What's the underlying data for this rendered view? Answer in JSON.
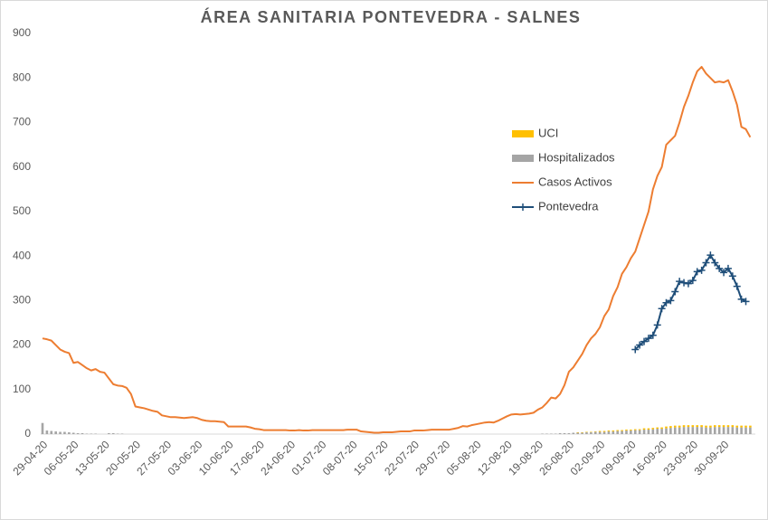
{
  "chart_data": {
    "type": "combo",
    "title": "ÁREA SANITARIA  PONTEVEDRA  - SALNES",
    "categories": [
      "29-04-20",
      null,
      null,
      null,
      null,
      null,
      null,
      "06-05-20",
      null,
      null,
      null,
      null,
      null,
      null,
      "13-05-20",
      null,
      null,
      null,
      null,
      null,
      null,
      "20-05-20",
      null,
      null,
      null,
      null,
      null,
      null,
      "27-05-20",
      null,
      null,
      null,
      null,
      null,
      null,
      "03-06-20",
      null,
      null,
      null,
      null,
      null,
      null,
      "10-06-20",
      null,
      null,
      null,
      null,
      null,
      null,
      "17-06-20",
      null,
      null,
      null,
      null,
      null,
      null,
      "24-06-20",
      null,
      null,
      null,
      null,
      null,
      null,
      "01-07-20",
      null,
      null,
      null,
      null,
      null,
      null,
      "08-07-20",
      null,
      null,
      null,
      null,
      null,
      null,
      "15-07-20",
      null,
      null,
      null,
      null,
      null,
      null,
      "22-07-20",
      null,
      null,
      null,
      null,
      null,
      null,
      "29-07-20",
      null,
      null,
      null,
      null,
      null,
      null,
      "05-08-20",
      null,
      null,
      null,
      null,
      null,
      null,
      "12-08-20",
      null,
      null,
      null,
      null,
      null,
      null,
      "19-08-20",
      null,
      null,
      null,
      null,
      null,
      null,
      "26-08-20",
      null,
      null,
      null,
      null,
      null,
      null,
      "02-09-20",
      null,
      null,
      null,
      null,
      null,
      null,
      "09-09-20",
      null,
      null,
      null,
      null,
      null,
      null,
      "16-09-20",
      null,
      null,
      null,
      null,
      null,
      null,
      "23-09-20",
      null,
      null,
      null,
      null,
      null,
      null,
      "30-09-20",
      null,
      null,
      null,
      null,
      null,
      null
    ],
    "series": [
      {
        "name": "UCI",
        "type": "bar",
        "color": "#ffc000",
        "values": [
          0,
          0,
          0,
          0,
          0,
          0,
          0,
          0,
          0,
          0,
          0,
          0,
          0,
          0,
          0,
          0,
          0,
          0,
          0,
          0,
          0,
          0,
          0,
          0,
          0,
          0,
          0,
          0,
          0,
          0,
          0,
          0,
          0,
          0,
          0,
          0,
          0,
          0,
          0,
          0,
          0,
          0,
          0,
          0,
          0,
          0,
          0,
          0,
          0,
          0,
          0,
          0,
          0,
          0,
          0,
          0,
          0,
          0,
          0,
          0,
          0,
          0,
          0,
          0,
          0,
          0,
          0,
          0,
          0,
          0,
          0,
          0,
          0,
          0,
          0,
          0,
          0,
          0,
          0,
          0,
          0,
          0,
          0,
          0,
          0,
          0,
          0,
          0,
          0,
          0,
          0,
          0,
          0,
          0,
          0,
          0,
          0,
          0,
          0,
          0,
          0,
          0,
          0,
          0,
          0,
          0,
          0,
          0,
          0,
          0,
          0,
          0,
          0,
          0,
          0,
          0,
          0,
          0,
          0,
          0,
          0,
          1,
          1,
          1,
          1,
          1,
          2,
          2,
          2,
          2,
          2,
          2,
          2,
          2,
          2,
          2,
          3,
          3,
          3,
          3,
          3,
          4,
          4,
          4,
          4,
          4,
          4,
          4,
          4,
          4,
          4,
          4,
          4,
          4,
          4,
          4,
          4,
          4,
          4,
          4,
          4
        ]
      },
      {
        "name": "Hospitalizados",
        "type": "bar",
        "color": "#a5a5a5",
        "values": [
          25,
          8,
          7,
          6,
          5,
          5,
          4,
          3,
          2,
          2,
          1,
          1,
          1,
          0,
          0,
          2,
          2,
          1,
          1,
          0,
          0,
          0,
          0,
          0,
          0,
          0,
          0,
          0,
          0,
          0,
          0,
          0,
          0,
          0,
          0,
          0,
          0,
          0,
          0,
          0,
          0,
          0,
          0,
          0,
          0,
          0,
          0,
          0,
          0,
          0,
          0,
          0,
          0,
          0,
          0,
          0,
          0,
          0,
          0,
          0,
          0,
          0,
          0,
          0,
          0,
          0,
          0,
          0,
          0,
          0,
          0,
          0,
          0,
          0,
          0,
          0,
          0,
          0,
          0,
          0,
          0,
          0,
          0,
          0,
          0,
          0,
          0,
          0,
          0,
          0,
          0,
          0,
          0,
          0,
          0,
          0,
          0,
          0,
          0,
          0,
          0,
          0,
          0,
          0,
          0,
          0,
          0,
          0,
          0,
          0,
          0,
          0,
          0,
          1,
          1,
          1,
          1,
          2,
          2,
          2,
          3,
          3,
          3,
          4,
          4,
          5,
          5,
          5,
          6,
          6,
          7,
          7,
          8,
          8,
          9,
          9,
          10,
          10,
          11,
          12,
          12,
          13,
          14,
          15,
          15,
          16,
          16,
          16,
          16,
          16,
          15,
          15,
          16,
          16,
          16,
          16,
          16,
          15,
          15,
          15,
          15
        ]
      },
      {
        "name": "Casos Activos",
        "type": "line",
        "color": "#ed7d31",
        "values": [
          215,
          213,
          210,
          200,
          190,
          185,
          182,
          160,
          162,
          155,
          148,
          143,
          146,
          140,
          138,
          125,
          112,
          109,
          108,
          104,
          90,
          62,
          60,
          58,
          55,
          52,
          50,
          42,
          40,
          38,
          38,
          37,
          36,
          37,
          38,
          36,
          32,
          30,
          29,
          29,
          28,
          27,
          17,
          17,
          17,
          17,
          17,
          15,
          12,
          11,
          9,
          9,
          9,
          9,
          9,
          9,
          8,
          8,
          9,
          8,
          8,
          9,
          9,
          9,
          9,
          9,
          9,
          9,
          9,
          10,
          10,
          10,
          6,
          5,
          4,
          3,
          3,
          4,
          4,
          4,
          5,
          6,
          6,
          6,
          8,
          8,
          8,
          9,
          10,
          10,
          10,
          10,
          10,
          12,
          14,
          18,
          17,
          20,
          22,
          24,
          26,
          27,
          26,
          30,
          35,
          40,
          44,
          45,
          44,
          45,
          46,
          48,
          55,
          60,
          70,
          82,
          80,
          90,
          110,
          140,
          150,
          165,
          180,
          200,
          215,
          225,
          240,
          265,
          280,
          310,
          330,
          360,
          375,
          395,
          410,
          440,
          470,
          500,
          550,
          580,
          600,
          650,
          660,
          670,
          700,
          735,
          760,
          790,
          815,
          825,
          810,
          800,
          790,
          792,
          790,
          795,
          770,
          740,
          690,
          685,
          667
        ]
      },
      {
        "name": "Pontevedra",
        "type": "line",
        "marker": "plus",
        "color": "#1f4e79",
        "values": [
          null,
          null,
          null,
          null,
          null,
          null,
          null,
          null,
          null,
          null,
          null,
          null,
          null,
          null,
          null,
          null,
          null,
          null,
          null,
          null,
          null,
          null,
          null,
          null,
          null,
          null,
          null,
          null,
          null,
          null,
          null,
          null,
          null,
          null,
          null,
          null,
          null,
          null,
          null,
          null,
          null,
          null,
          null,
          null,
          null,
          null,
          null,
          null,
          null,
          null,
          null,
          null,
          null,
          null,
          null,
          null,
          null,
          null,
          null,
          null,
          null,
          null,
          null,
          null,
          null,
          null,
          null,
          null,
          null,
          null,
          null,
          null,
          null,
          null,
          null,
          null,
          null,
          null,
          null,
          null,
          null,
          null,
          null,
          null,
          null,
          null,
          null,
          null,
          null,
          null,
          null,
          null,
          null,
          null,
          null,
          null,
          null,
          null,
          null,
          null,
          null,
          null,
          null,
          null,
          null,
          null,
          null,
          null,
          null,
          null,
          null,
          null,
          null,
          null,
          null,
          null,
          null,
          null,
          null,
          null,
          null,
          null,
          null,
          null,
          null,
          null,
          null,
          null,
          null,
          null,
          null,
          null,
          null,
          null,
          190,
          200,
          208,
          215,
          222,
          245,
          282,
          295,
          300,
          320,
          343,
          340,
          338,
          345,
          365,
          368,
          385,
          402,
          385,
          372,
          363,
          372,
          355,
          332,
          303,
          298,
          null
        ]
      }
    ],
    "ylim": [
      0,
      900
    ],
    "yticks": [
      0,
      100,
      200,
      300,
      400,
      500,
      600,
      700,
      800,
      900
    ],
    "grid": false
  }
}
